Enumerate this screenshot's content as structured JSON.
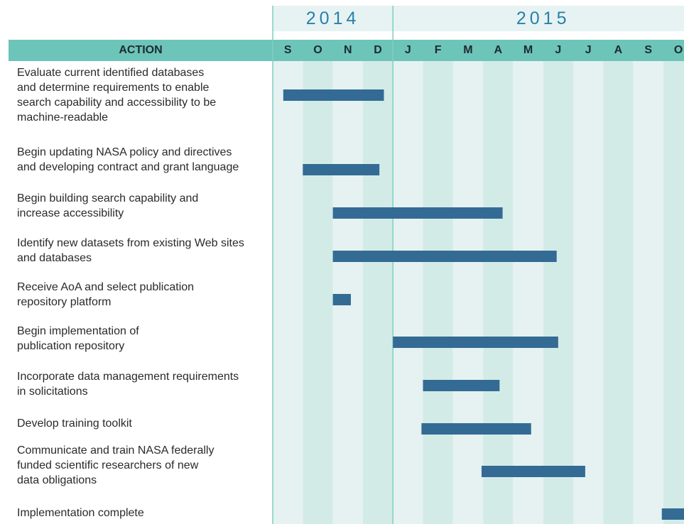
{
  "chart_data": {
    "type": "gantt",
    "header": "ACTION",
    "years": [
      {
        "label": "2014",
        "start": 0,
        "end": 4
      },
      {
        "label": "2015",
        "start": 4,
        "end": 14
      }
    ],
    "categories": [
      "S",
      "O",
      "N",
      "D",
      "J",
      "F",
      "M",
      "A",
      "M",
      "J",
      "J",
      "A",
      "S",
      "O"
    ],
    "xlim": [
      0,
      14
    ],
    "color": "#336b94",
    "tasks": [
      {
        "name": "Evaluate current identified databases\nand determine requirements to enable\nsearch capability and accessibility to be\nmachine-readable",
        "start": 0.35,
        "end": 3.7
      },
      {
        "name": "Begin updating NASA policy and directives\nand developing contract and grant language",
        "start": 1.0,
        "end": 3.55
      },
      {
        "name": "Begin building search capability and\nincrease accessibility",
        "start": 2.0,
        "end": 7.65
      },
      {
        "name": "Identify new datasets from existing Web sites\nand databases",
        "start": 2.0,
        "end": 9.45
      },
      {
        "name": "Receive AoA and select publication\nrepository platform",
        "start": 2.0,
        "end": 2.6
      },
      {
        "name": "Begin implementation of\npublication repository",
        "start": 4.0,
        "end": 9.5
      },
      {
        "name": "Incorporate data management requirements\nin solicitations",
        "start": 5.0,
        "end": 7.55
      },
      {
        "name": "Develop training toolkit",
        "start": 4.95,
        "end": 8.6
      },
      {
        "name": "Communicate and train NASA federally\nfunded scientific researchers of new\ndata obligations",
        "start": 6.95,
        "end": 10.4
      },
      {
        "name": "Implementation complete",
        "start": 12.95,
        "end": 13.75
      }
    ]
  }
}
